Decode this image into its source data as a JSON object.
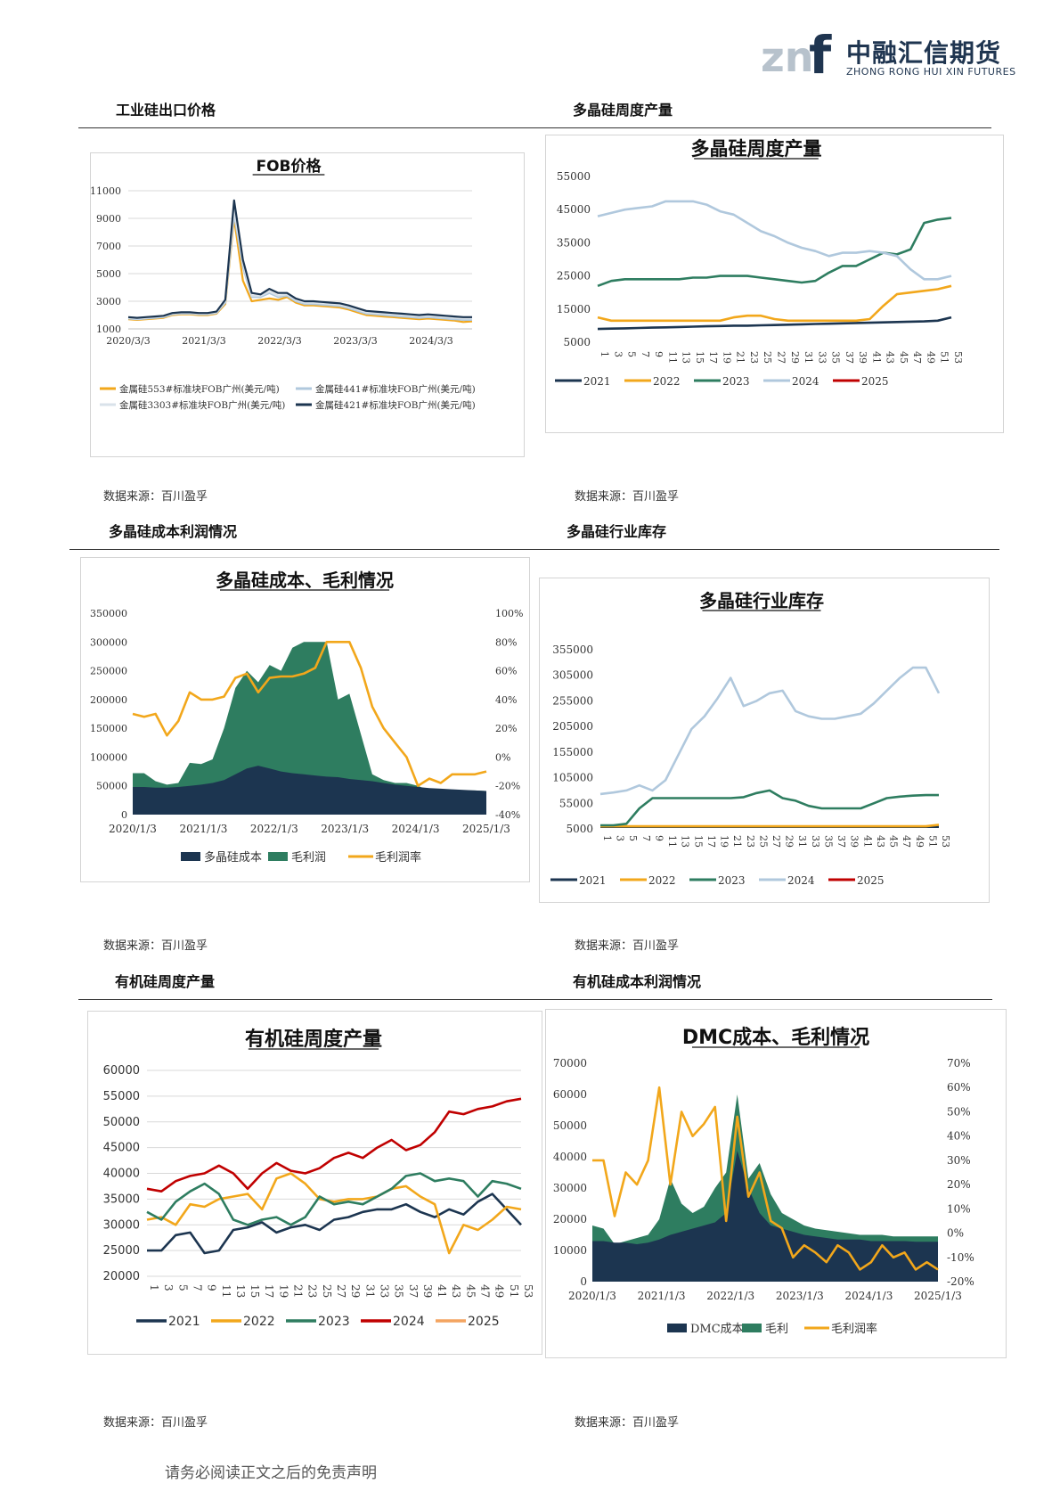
{
  "header": {
    "brand_cn": "中融汇信期货",
    "brand_en": "ZHONG RONG HUI XIN FUTURES"
  },
  "sections": {
    "s1": "工业硅出口价格",
    "s2": "多晶硅周度产量",
    "s3": "多晶硅成本利润情况",
    "s4": "多晶硅行业库存",
    "s5": "有机硅周度产量",
    "s6": "有机硅成本利润情况"
  },
  "source_text": "数据来源：百川盈孚",
  "footer_text": "请务必阅读正文之后的免责声明",
  "colors": {
    "navy": "#1c3550",
    "orange": "#f2a71b",
    "green": "#2e7d60",
    "lightblue": "#b0c8dd",
    "red": "#c00000",
    "peach": "#f4a460",
    "palegray": "#d9e2ea"
  },
  "chart_data": [
    {
      "id": "fob",
      "type": "line",
      "title": "FOB价格",
      "x_ticks": [
        "2020/3/3",
        "2021/3/3",
        "2022/3/3",
        "2023/3/3",
        "2024/3/3"
      ],
      "ylim": [
        1000,
        11000
      ],
      "y_ticks": [
        "11000",
        "9000",
        "7000",
        "5000",
        "3000",
        "1000"
      ],
      "series": [
        {
          "name": "金属硅553#标准块FOB广州(美元/吨)",
          "color": "orange",
          "values": [
            1700,
            1650,
            1700,
            1750,
            1800,
            2000,
            2050,
            2050,
            2000,
            2000,
            2100,
            2800,
            9000,
            4500,
            3000,
            3100,
            3200,
            3100,
            3300,
            2900,
            2700,
            2700,
            2650,
            2600,
            2550,
            2400,
            2200,
            2000,
            1950,
            1900,
            1850,
            1800,
            1750,
            1700,
            1750,
            1700,
            1650,
            1600,
            1500,
            1550
          ]
        },
        {
          "name": "金属硅441#标准块FOB广州(美元/吨)",
          "color": "lightblue",
          "values": [
            1750,
            1700,
            1750,
            1800,
            1850,
            2050,
            2100,
            2100,
            2050,
            2050,
            2150,
            2900,
            9300,
            5500,
            3300,
            3300,
            3600,
            3300,
            3400,
            3000,
            2800,
            2800,
            2750,
            2700,
            2650,
            2500,
            2300,
            2100,
            2050,
            2000,
            1950,
            1900,
            1850,
            1800,
            1850,
            1800,
            1750,
            1700,
            1650,
            1650
          ]
        },
        {
          "name": "金属硅3303#标准块FOB广州(美元/吨)",
          "color": "palegray",
          "values": [
            1800,
            1750,
            1800,
            1850,
            1900,
            2100,
            2150,
            2150,
            2100,
            2100,
            2200,
            3000,
            9600,
            5800,
            3400,
            3400,
            3700,
            3400,
            3500,
            3100,
            2900,
            2900,
            2850,
            2800,
            2750,
            2600,
            2400,
            2200,
            2150,
            2100,
            2050,
            2000,
            1950,
            1900,
            1950,
            1900,
            1850,
            1800,
            1750,
            1750
          ]
        },
        {
          "name": "金属硅421#标准块FOB广州(美元/吨)",
          "color": "navy",
          "values": [
            1850,
            1800,
            1850,
            1900,
            1950,
            2150,
            2200,
            2200,
            2150,
            2150,
            2250,
            3100,
            10300,
            6000,
            3600,
            3500,
            3900,
            3600,
            3600,
            3200,
            3000,
            3000,
            2950,
            2900,
            2850,
            2700,
            2500,
            2300,
            2250,
            2200,
            2150,
            2100,
            2050,
            2000,
            2050,
            2000,
            1950,
            1900,
            1850,
            1850
          ]
        }
      ]
    },
    {
      "id": "poly_output",
      "type": "line",
      "title": "多晶硅周度产量",
      "x_ticks": [
        "1",
        "3",
        "5",
        "7",
        "9",
        "11",
        "13",
        "15",
        "17",
        "19",
        "21",
        "23",
        "25",
        "27",
        "29",
        "31",
        "33",
        "35",
        "37",
        "39",
        "41",
        "43",
        "45",
        "47",
        "49",
        "51",
        "53"
      ],
      "ylim": [
        5000,
        55000
      ],
      "y_ticks": [
        "55000",
        "45000",
        "35000",
        "25000",
        "15000",
        "5000"
      ],
      "series": [
        {
          "name": "2021",
          "color": "navy",
          "values": [
            9000,
            9100,
            9200,
            9300,
            9400,
            9500,
            9600,
            9700,
            9800,
            9900,
            10000,
            10000,
            10100,
            10200,
            10300,
            10400,
            10500,
            10600,
            10700,
            10800,
            10900,
            11000,
            11100,
            11200,
            11300,
            11500,
            12500
          ]
        },
        {
          "name": "2022",
          "color": "orange",
          "values": [
            12500,
            11500,
            11500,
            11500,
            11500,
            11500,
            11500,
            11500,
            11500,
            11500,
            12500,
            13000,
            13000,
            12000,
            11500,
            11500,
            11500,
            11500,
            11500,
            11500,
            12000,
            16000,
            19500,
            20000,
            20500,
            21000,
            22000
          ]
        },
        {
          "name": "2023",
          "color": "green",
          "values": [
            22000,
            23500,
            24000,
            24000,
            24000,
            24000,
            24000,
            24500,
            24500,
            25000,
            25000,
            25000,
            24500,
            24000,
            23500,
            23000,
            23500,
            26000,
            28000,
            28000,
            30000,
            32000,
            31500,
            33000,
            41000,
            42000,
            42500
          ]
        },
        {
          "name": "2024",
          "color": "lightblue",
          "values": [
            43000,
            44000,
            45000,
            45500,
            46000,
            47500,
            47500,
            47500,
            46500,
            44500,
            43500,
            41000,
            38500,
            37000,
            35000,
            33500,
            32500,
            31000,
            32000,
            32000,
            32500,
            32000,
            31000,
            27000,
            24000,
            24000,
            25000
          ]
        },
        {
          "name": "2025",
          "color": "red",
          "values": []
        }
      ]
    },
    {
      "id": "poly_profit",
      "type": "area",
      "title": "多晶硅成本、毛利情况",
      "x_ticks": [
        "2020/1/3",
        "2021/1/3",
        "2022/1/3",
        "2023/1/3",
        "2024/1/3",
        "2025/1/3"
      ],
      "ylim": [
        0,
        350000
      ],
      "y_ticks": [
        "350000",
        "300000",
        "250000",
        "200000",
        "150000",
        "100000",
        "50000",
        "0"
      ],
      "y2lim": [
        -40,
        100
      ],
      "y2_ticks": [
        "100%",
        "80%",
        "60%",
        "40%",
        "20%",
        "0%",
        "-20%",
        "-40%"
      ],
      "series": [
        {
          "name": "多晶硅成本",
          "color": "navy",
          "values": [
            48000,
            48000,
            47000,
            47000,
            48000,
            50000,
            52000,
            55000,
            60000,
            70000,
            80000,
            85000,
            80000,
            75000,
            72000,
            70000,
            68000,
            66000,
            65000,
            62000,
            60000,
            58000,
            55000,
            52000,
            50000,
            48000,
            46000,
            45000,
            44000,
            43000,
            42000,
            41000
          ]
        },
        {
          "name": "毛利润",
          "color": "green",
          "values": [
            72000,
            72000,
            58000,
            52000,
            55000,
            90000,
            88000,
            96000,
            150000,
            220000,
            250000,
            230000,
            260000,
            250000,
            290000,
            300000,
            300000,
            300000,
            200000,
            210000,
            140000,
            70000,
            60000,
            55000,
            55000,
            50000,
            42000,
            43000,
            43000,
            42000,
            42000,
            41000
          ]
        },
        {
          "name": "毛利润率",
          "color": "orange",
          "values": [
            30,
            28,
            30,
            15,
            25,
            45,
            40,
            40,
            42,
            55,
            58,
            45,
            55,
            56,
            56,
            58,
            62,
            80,
            80,
            80,
            62,
            35,
            20,
            10,
            0,
            -20,
            -15,
            -18,
            -12,
            -12,
            -12,
            -10
          ]
        }
      ]
    },
    {
      "id": "poly_stock",
      "type": "line",
      "title": "多晶硅行业库存",
      "x_ticks": [
        "1",
        "3",
        "5",
        "7",
        "9",
        "11",
        "13",
        "15",
        "17",
        "19",
        "21",
        "23",
        "25",
        "27",
        "29",
        "31",
        "33",
        "35",
        "37",
        "39",
        "41",
        "43",
        "45",
        "47",
        "49",
        "51",
        "53"
      ],
      "ylim": [
        5000,
        355000
      ],
      "y_ticks": [
        "355000",
        "305000",
        "255000",
        "205000",
        "155000",
        "105000",
        "55000",
        "5000"
      ],
      "series": [
        {
          "name": "2021",
          "color": "navy",
          "values": [
            9000,
            9000,
            9000,
            9000,
            9000,
            9000,
            9000,
            9000,
            9000,
            9000,
            9000,
            9000,
            9000,
            9000,
            9000,
            9000,
            9000,
            9000,
            9000,
            9000,
            9000,
            9000,
            9000,
            9000,
            9000,
            9000,
            9000
          ]
        },
        {
          "name": "2022",
          "color": "orange",
          "values": [
            10000,
            10000,
            10000,
            10000,
            10000,
            10000,
            10000,
            10000,
            10000,
            10000,
            10000,
            10000,
            10000,
            10000,
            10000,
            10000,
            10000,
            10000,
            10000,
            10000,
            10000,
            10000,
            10000,
            10000,
            10000,
            10000,
            13000
          ]
        },
        {
          "name": "2023",
          "color": "green",
          "values": [
            12000,
            12000,
            15000,
            45000,
            65000,
            65000,
            65000,
            65000,
            65000,
            65000,
            65000,
            67000,
            75000,
            80000,
            65000,
            60000,
            50000,
            45000,
            45000,
            45000,
            45000,
            55000,
            65000,
            68000,
            70000,
            71000,
            71000
          ]
        },
        {
          "name": "2024",
          "color": "lightblue",
          "values": [
            73000,
            76000,
            80000,
            90000,
            80000,
            100000,
            150000,
            200000,
            225000,
            260000,
            300000,
            245000,
            255000,
            270000,
            275000,
            235000,
            225000,
            220000,
            220000,
            225000,
            230000,
            250000,
            275000,
            300000,
            320000,
            320000,
            270000
          ]
        },
        {
          "name": "2025",
          "color": "red",
          "values": []
        }
      ]
    },
    {
      "id": "silicone_output",
      "type": "line",
      "title": "有机硅周度产量",
      "x_ticks": [
        "1",
        "3",
        "5",
        "7",
        "9",
        "11",
        "13",
        "15",
        "17",
        "19",
        "21",
        "23",
        "25",
        "27",
        "29",
        "31",
        "33",
        "35",
        "37",
        "39",
        "41",
        "43",
        "45",
        "47",
        "49",
        "51",
        "53"
      ],
      "ylim": [
        20000,
        60000
      ],
      "y_ticks": [
        "60000",
        "55000",
        "50000",
        "45000",
        "40000",
        "35000",
        "30000",
        "25000",
        "20000"
      ],
      "series": [
        {
          "name": "2021",
          "color": "navy",
          "values": [
            25000,
            25000,
            28000,
            28500,
            24500,
            25000,
            29000,
            29500,
            30500,
            28500,
            29500,
            30000,
            29000,
            31000,
            31500,
            32500,
            33000,
            33000,
            34000,
            32500,
            31500,
            33000,
            32000,
            34500,
            36000,
            33000,
            30000
          ]
        },
        {
          "name": "2022",
          "color": "orange",
          "values": [
            31000,
            31500,
            30000,
            34000,
            33500,
            35000,
            35500,
            36000,
            33000,
            39000,
            40000,
            38000,
            35000,
            34500,
            35000,
            35000,
            35500,
            37000,
            37500,
            35500,
            34000,
            24500,
            30000,
            29000,
            31000,
            33500,
            33000
          ]
        },
        {
          "name": "2023",
          "color": "green",
          "values": [
            32500,
            31000,
            34500,
            36500,
            38000,
            36000,
            31000,
            30000,
            31000,
            31500,
            30000,
            31500,
            35500,
            34000,
            34500,
            34000,
            35500,
            37000,
            39500,
            40000,
            38500,
            39000,
            38500,
            35500,
            38500,
            38000,
            37000
          ]
        },
        {
          "name": "2024",
          "color": "red",
          "values": [
            37000,
            36500,
            38500,
            39500,
            40000,
            41500,
            40000,
            37000,
            40000,
            42000,
            40500,
            40000,
            41000,
            43000,
            44000,
            43000,
            45000,
            46500,
            44500,
            45500,
            48000,
            52000,
            51500,
            52500,
            53000,
            54000,
            54500
          ]
        },
        {
          "name": "2025",
          "color": "peach",
          "values": []
        }
      ]
    },
    {
      "id": "dmc_profit",
      "type": "area",
      "title": "DMC成本、毛利情况",
      "x_ticks": [
        "2020/1/3",
        "2021/1/3",
        "2022/1/3",
        "2023/1/3",
        "2024/1/3",
        "2025/1/3"
      ],
      "ylim": [
        0,
        70000
      ],
      "y_ticks": [
        "70000",
        "60000",
        "50000",
        "40000",
        "30000",
        "20000",
        "10000",
        "0"
      ],
      "y2lim": [
        -20,
        70
      ],
      "y2_ticks": [
        "70%",
        "60%",
        "50%",
        "40%",
        "30%",
        "20%",
        "10%",
        "0%",
        "-10%",
        "-20%"
      ],
      "series": [
        {
          "name": "DMC成本",
          "color": "navy",
          "values": [
            13000,
            13000,
            12500,
            12500,
            12000,
            12500,
            13500,
            15000,
            16000,
            17000,
            18000,
            19000,
            22000,
            42000,
            30000,
            22000,
            18000,
            17000,
            16000,
            15000,
            14500,
            14000,
            13500,
            13500,
            13500,
            13000,
            13000,
            13000,
            13000,
            12800,
            12800,
            12800
          ]
        },
        {
          "name": "毛利",
          "color": "green",
          "values": [
            18000,
            17000,
            12000,
            13000,
            14000,
            15000,
            20000,
            33000,
            25000,
            22000,
            24000,
            30000,
            35000,
            60000,
            33000,
            38000,
            28000,
            22000,
            20000,
            18000,
            17000,
            16500,
            16000,
            15500,
            15000,
            15000,
            15000,
            14500,
            14500,
            14500,
            14500,
            14500
          ]
        },
        {
          "name": "毛利润率",
          "color": "orange",
          "values": [
            30,
            30,
            7,
            25,
            20,
            30,
            60,
            20,
            50,
            40,
            45,
            52,
            5,
            48,
            15,
            25,
            5,
            2,
            -10,
            -5,
            -8,
            -12,
            -5,
            -8,
            -15,
            -12,
            -5,
            -10,
            -8,
            -15,
            -12,
            -15
          ]
        }
      ]
    }
  ]
}
